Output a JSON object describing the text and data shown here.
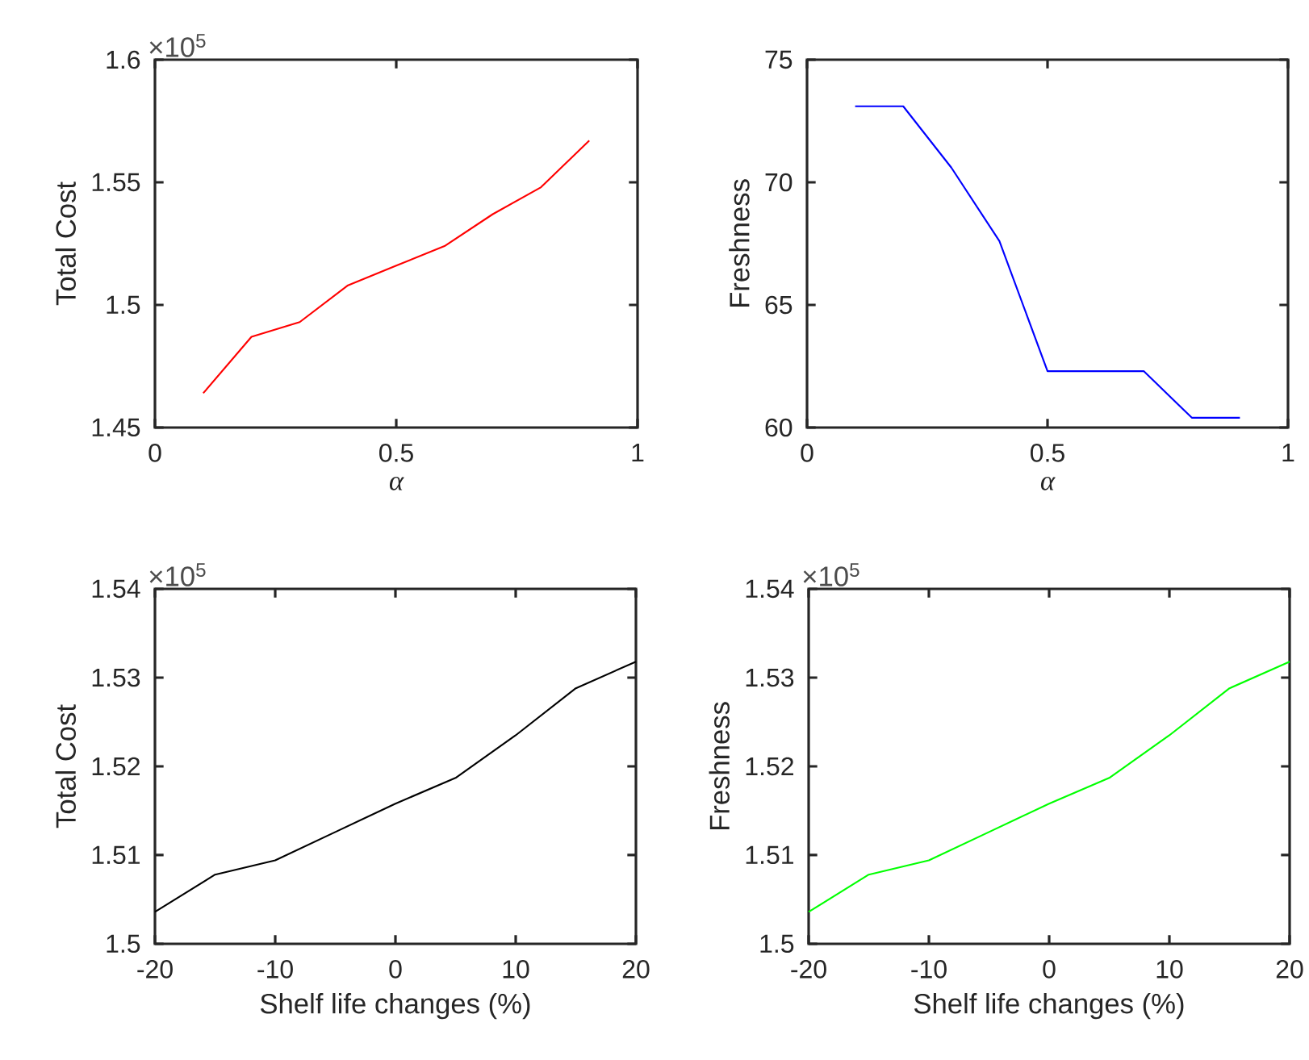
{
  "chart_data": [
    {
      "type": "line",
      "xlabel": "α",
      "ylabel": "Total Cost",
      "x": [
        0.1,
        0.2,
        0.3,
        0.4,
        0.5,
        0.6,
        0.7,
        0.8,
        0.9
      ],
      "series": [
        {
          "color": "#ff0000",
          "values": [
            1.464,
            1.487,
            1.493,
            1.508,
            1.516,
            1.524,
            1.537,
            1.548,
            1.567
          ]
        }
      ],
      "xlim": [
        0,
        1
      ],
      "xticks": [
        0,
        0.5,
        1
      ],
      "ylim": [
        1.45,
        1.6
      ],
      "yticks": [
        1.45,
        1.5,
        1.55,
        1.6
      ],
      "annotations": [
        "×10$^{5}$"
      ]
    },
    {
      "type": "line",
      "xlabel": "α",
      "ylabel": "Freshness",
      "x": [
        0.1,
        0.2,
        0.3,
        0.4,
        0.5,
        0.6,
        0.7,
        0.8,
        0.9
      ],
      "series": [
        {
          "color": "#0000ff",
          "values": [
            73.1,
            73.1,
            70.6,
            67.6,
            62.3,
            62.3,
            62.3,
            60.4,
            60.4
          ]
        }
      ],
      "xlim": [
        0,
        1
      ],
      "xticks": [
        0,
        0.5,
        1
      ],
      "ylim": [
        60,
        75
      ],
      "yticks": [
        60,
        65,
        70,
        75
      ]
    },
    {
      "type": "line",
      "xlabel": "Shelf life changes (%)",
      "ylabel": "Total Cost",
      "x": [
        -20,
        -15,
        -10,
        -5,
        0,
        5,
        10,
        15,
        20
      ],
      "series": [
        {
          "color": "#000000",
          "values": [
            1.5036,
            1.5078,
            1.5094,
            1.5126,
            1.5158,
            1.5187,
            1.5235,
            1.5288,
            1.5318
          ]
        }
      ],
      "xlim": [
        -20,
        20
      ],
      "xticks": [
        -20,
        -10,
        0,
        10,
        20
      ],
      "ylim": [
        1.5,
        1.54
      ],
      "yticks": [
        1.5,
        1.51,
        1.52,
        1.53,
        1.54
      ],
      "annotations": [
        "×10$^{5}$"
      ]
    },
    {
      "type": "line",
      "xlabel": "Shelf life changes (%)",
      "ylabel": "Freshness",
      "x": [
        -20,
        -15,
        -10,
        -5,
        0,
        5,
        10,
        15,
        20
      ],
      "series": [
        {
          "color": "#00ff00",
          "values": [
            1.5036,
            1.5078,
            1.5094,
            1.5126,
            1.5158,
            1.5187,
            1.5235,
            1.5288,
            1.5318
          ]
        }
      ],
      "xlim": [
        -20,
        20
      ],
      "xticks": [
        -20,
        -10,
        0,
        10,
        20
      ],
      "ylim": [
        1.5,
        1.54
      ],
      "yticks": [
        1.5,
        1.51,
        1.52,
        1.53,
        1.54
      ],
      "annotations": [
        "×10$^{5}$"
      ]
    }
  ]
}
